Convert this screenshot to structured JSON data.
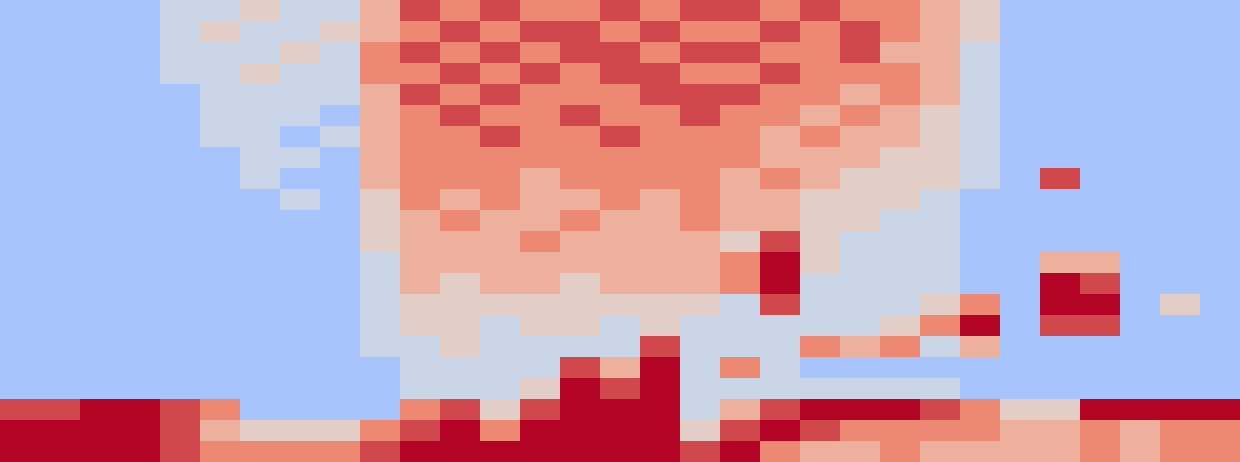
{
  "chart_data": {
    "type": "heatmap",
    "tick_labels": false,
    "zlim": [
      0,
      9
    ],
    "cells": [
      [
        3,
        3,
        3,
        3,
        4,
        4,
        5,
        4,
        4,
        6,
        8,
        7,
        8,
        7,
        7,
        8,
        7,
        8,
        8,
        7,
        8,
        7,
        7,
        6,
        5,
        3,
        3,
        3,
        3,
        3,
        3
      ],
      [
        3,
        3,
        3,
        3,
        4,
        5,
        4,
        4,
        5,
        6,
        7,
        8,
        7,
        8,
        8,
        7,
        8,
        7,
        7,
        8,
        7,
        8,
        7,
        6,
        5,
        3,
        3,
        3,
        3,
        3,
        3
      ],
      [
        3,
        3,
        3,
        3,
        4,
        4,
        4,
        5,
        4,
        7,
        8,
        7,
        8,
        7,
        8,
        8,
        7,
        8,
        8,
        7,
        7,
        8,
        6,
        6,
        4,
        3,
        3,
        3,
        3,
        3,
        3
      ],
      [
        3,
        3,
        3,
        3,
        4,
        4,
        5,
        4,
        4,
        7,
        7,
        8,
        7,
        8,
        7,
        8,
        8,
        7,
        7,
        8,
        7,
        7,
        7,
        6,
        4,
        3,
        3,
        3,
        3,
        3,
        3
      ],
      [
        3,
        3,
        3,
        3,
        3,
        4,
        4,
        4,
        4,
        6,
        8,
        7,
        8,
        7,
        7,
        7,
        8,
        8,
        8,
        7,
        7,
        6,
        7,
        6,
        4,
        3,
        3,
        3,
        3,
        3,
        3
      ],
      [
        3,
        3,
        3,
        3,
        3,
        4,
        4,
        4,
        3,
        6,
        7,
        8,
        7,
        7,
        8,
        7,
        7,
        8,
        7,
        7,
        6,
        7,
        6,
        5,
        4,
        3,
        3,
        3,
        3,
        3,
        3
      ],
      [
        3,
        3,
        3,
        3,
        3,
        4,
        4,
        3,
        4,
        6,
        7,
        7,
        8,
        7,
        7,
        8,
        7,
        7,
        7,
        6,
        7,
        6,
        6,
        5,
        4,
        3,
        3,
        3,
        3,
        3,
        3
      ],
      [
        3,
        3,
        3,
        3,
        3,
        3,
        4,
        4,
        3,
        6,
        7,
        7,
        7,
        7,
        7,
        7,
        7,
        7,
        7,
        6,
        6,
        6,
        5,
        5,
        4,
        3,
        3,
        3,
        3,
        3,
        3
      ],
      [
        3,
        3,
        3,
        3,
        3,
        3,
        4,
        3,
        3,
        6,
        7,
        7,
        7,
        6,
        7,
        7,
        7,
        7,
        6,
        7,
        6,
        5,
        5,
        5,
        4,
        3,
        8,
        3,
        3,
        3,
        3
      ],
      [
        3,
        3,
        3,
        3,
        3,
        3,
        3,
        4,
        3,
        5,
        7,
        6,
        7,
        6,
        6,
        7,
        6,
        7,
        6,
        6,
        5,
        5,
        5,
        4,
        3,
        3,
        3,
        3,
        3,
        3,
        3
      ],
      [
        3,
        3,
        3,
        3,
        3,
        3,
        3,
        3,
        3,
        5,
        6,
        7,
        6,
        6,
        7,
        6,
        6,
        7,
        6,
        6,
        5,
        5,
        4,
        4,
        3,
        3,
        3,
        3,
        3,
        3,
        3
      ],
      [
        3,
        3,
        3,
        3,
        3,
        3,
        3,
        3,
        3,
        5,
        6,
        6,
        6,
        7,
        6,
        6,
        6,
        6,
        5,
        8,
        5,
        4,
        4,
        4,
        3,
        3,
        3,
        3,
        3,
        3,
        3
      ],
      [
        3,
        3,
        3,
        3,
        3,
        3,
        3,
        3,
        3,
        4,
        6,
        6,
        6,
        6,
        6,
        6,
        6,
        6,
        7,
        9,
        5,
        4,
        4,
        4,
        3,
        3,
        6,
        6,
        3,
        3,
        3
      ],
      [
        3,
        3,
        3,
        3,
        3,
        3,
        3,
        3,
        3,
        4,
        6,
        5,
        6,
        6,
        5,
        6,
        6,
        6,
        7,
        9,
        4,
        4,
        4,
        4,
        3,
        3,
        9,
        8,
        3,
        3,
        3
      ],
      [
        3,
        3,
        3,
        3,
        3,
        3,
        3,
        3,
        3,
        4,
        5,
        5,
        5,
        5,
        5,
        5,
        5,
        5,
        4,
        8,
        4,
        4,
        4,
        5,
        7,
        3,
        9,
        9,
        3,
        5,
        3
      ],
      [
        3,
        3,
        3,
        3,
        3,
        3,
        3,
        3,
        3,
        4,
        5,
        5,
        4,
        5,
        5,
        4,
        5,
        4,
        4,
        4,
        4,
        4,
        5,
        7,
        9,
        3,
        8,
        8,
        3,
        3,
        3
      ],
      [
        3,
        3,
        3,
        3,
        3,
        3,
        3,
        3,
        3,
        4,
        4,
        5,
        4,
        4,
        4,
        4,
        8,
        4,
        4,
        4,
        7,
        6,
        7,
        4,
        6,
        3,
        3,
        3,
        3,
        3,
        3
      ],
      [
        3,
        3,
        3,
        3,
        3,
        3,
        3,
        3,
        3,
        3,
        4,
        4,
        4,
        4,
        8,
        6,
        9,
        4,
        7,
        4,
        3,
        3,
        3,
        3,
        3,
        3,
        3,
        3,
        3,
        3,
        3
      ],
      [
        3,
        3,
        3,
        3,
        3,
        3,
        3,
        3,
        3,
        3,
        4,
        4,
        4,
        5,
        9,
        8,
        9,
        4,
        4,
        4,
        4,
        4,
        4,
        4,
        3,
        3,
        3,
        3,
        3,
        3,
        3
      ],
      [
        8,
        8,
        9,
        9,
        8,
        7,
        3,
        3,
        3,
        3,
        7,
        8,
        5,
        8,
        9,
        9,
        9,
        4,
        6,
        8,
        9,
        9,
        9,
        8,
        7,
        5,
        5,
        9,
        9,
        9,
        9
      ],
      [
        9,
        9,
        9,
        9,
        8,
        6,
        5,
        5,
        5,
        7,
        8,
        9,
        7,
        9,
        9,
        9,
        9,
        5,
        8,
        9,
        8,
        7,
        7,
        7,
        7,
        6,
        6,
        7,
        6,
        7,
        7
      ],
      [
        9,
        9,
        9,
        9,
        8,
        7,
        7,
        7,
        7,
        8,
        9,
        9,
        9,
        9,
        9,
        9,
        9,
        8,
        9,
        7,
        6,
        6,
        7,
        6,
        6,
        6,
        6,
        7,
        6,
        7,
        7
      ]
    ]
  }
}
